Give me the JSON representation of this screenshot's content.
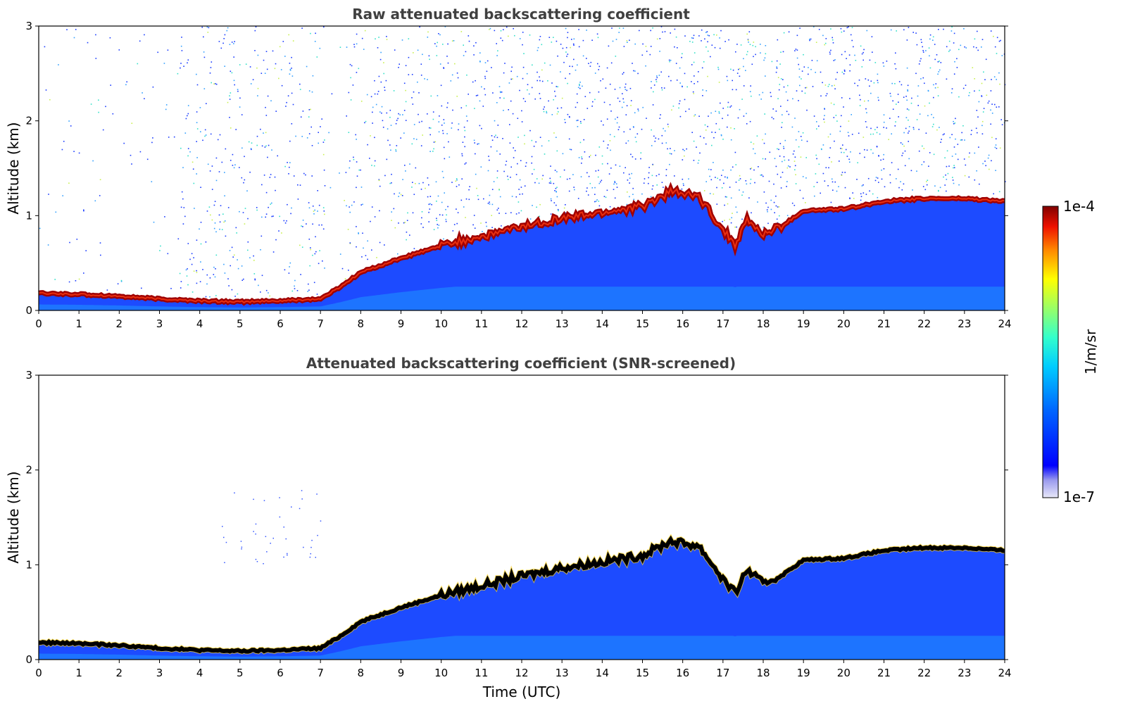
{
  "chart_data": [
    {
      "type": "heatmap",
      "title": "Raw attenuated backscattering coefficient",
      "xlabel": "",
      "ylabel": "Altitude (km)",
      "xlim": [
        0,
        24
      ],
      "ylim": [
        0,
        3
      ],
      "xticks": [
        "0",
        "1",
        "2",
        "3",
        "4",
        "5",
        "6",
        "7",
        "8",
        "9",
        "10",
        "11",
        "12",
        "13",
        "14",
        "15",
        "16",
        "17",
        "18",
        "19",
        "20",
        "21",
        "22",
        "23",
        "24"
      ],
      "yticks": [
        "0",
        "1",
        "2",
        "3"
      ],
      "layer_top_km": {
        "time_utc": [
          0,
          1,
          2,
          3,
          4,
          5,
          6,
          7,
          7.5,
          8,
          9,
          10,
          11,
          12,
          13,
          14,
          15,
          15.7,
          16.4,
          17,
          17.3,
          17.6,
          18,
          18.5,
          19,
          20,
          21,
          22,
          23,
          24
        ],
        "altitude_km": [
          0.18,
          0.17,
          0.15,
          0.12,
          0.1,
          0.09,
          0.1,
          0.12,
          0.25,
          0.4,
          0.55,
          0.68,
          0.78,
          0.88,
          0.97,
          1.03,
          1.1,
          1.25,
          1.2,
          0.85,
          0.7,
          0.95,
          0.8,
          0.9,
          1.05,
          1.07,
          1.15,
          1.18,
          1.18,
          1.15
        ]
      }
    },
    {
      "type": "heatmap",
      "title": "Attenuated backscattering coefficient (SNR-screened)",
      "xlabel": "Time (UTC)",
      "ylabel": "Altitude (km)",
      "xlim": [
        0,
        24
      ],
      "ylim": [
        0,
        3
      ],
      "xticks": [
        "0",
        "1",
        "2",
        "3",
        "4",
        "5",
        "6",
        "7",
        "8",
        "9",
        "10",
        "11",
        "12",
        "13",
        "14",
        "15",
        "16",
        "17",
        "18",
        "19",
        "20",
        "21",
        "22",
        "23",
        "24"
      ],
      "yticks": [
        "0",
        "1",
        "2",
        "3"
      ],
      "layer_top_km": {
        "time_utc": [
          0,
          1,
          2,
          3,
          4,
          5,
          6,
          7,
          7.5,
          8,
          9,
          10,
          11,
          12,
          13,
          14,
          15,
          15.7,
          16.4,
          17,
          17.3,
          17.6,
          18,
          18.5,
          19,
          20,
          21,
          22,
          23,
          24
        ],
        "altitude_km": [
          0.18,
          0.17,
          0.15,
          0.12,
          0.1,
          0.09,
          0.1,
          0.12,
          0.25,
          0.4,
          0.55,
          0.68,
          0.78,
          0.88,
          0.97,
          1.03,
          1.1,
          1.25,
          1.2,
          0.85,
          0.7,
          0.95,
          0.8,
          0.9,
          1.05,
          1.07,
          1.15,
          1.18,
          1.18,
          1.15
        ]
      }
    }
  ],
  "colorbar": {
    "label": "1/m/sr",
    "max_label": "1e-4",
    "min_label": "1e-7",
    "colormap": "jet"
  }
}
